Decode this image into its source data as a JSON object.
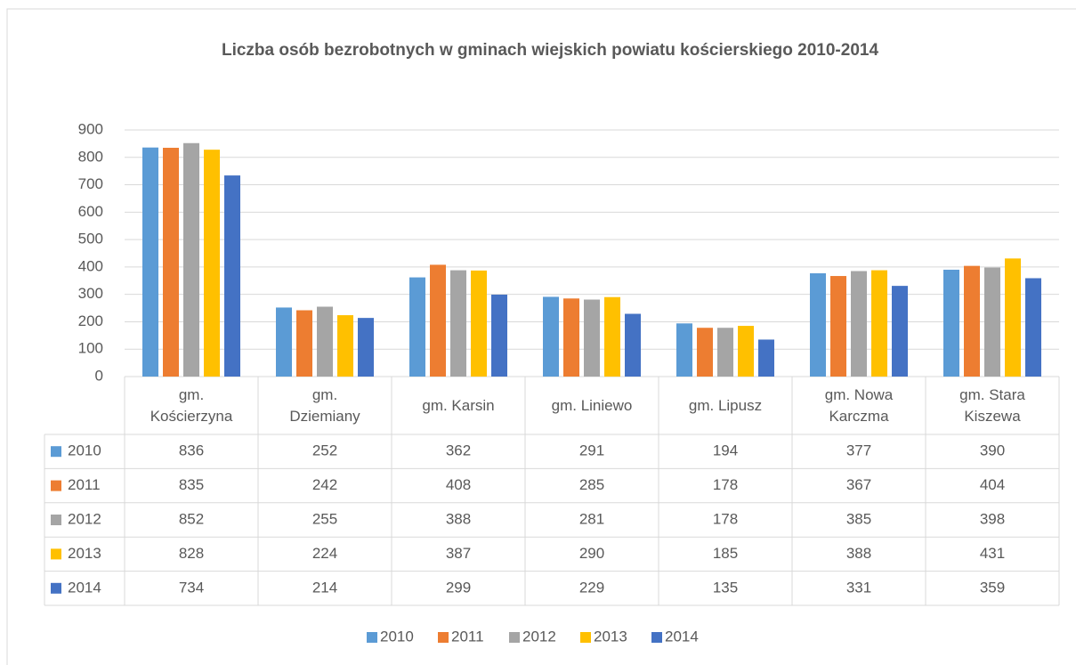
{
  "chart_data": {
    "type": "bar",
    "title": "Liczba osób bezrobotnych w gminach wiejskich  powiatu kościerskiego 2010-2014",
    "categories": [
      "gm. Kościerzyna",
      "gm. Dziemiany",
      "gm. Karsin",
      "gm. Liniewo",
      "gm. Lipusz",
      "gm. Nowa Karczma",
      "gm. Stara Kiszewa"
    ],
    "series": [
      {
        "name": "2010",
        "color": "#5b9bd5",
        "values": [
          836,
          252,
          362,
          291,
          194,
          377,
          390
        ]
      },
      {
        "name": "2011",
        "color": "#ed7d31",
        "values": [
          835,
          242,
          408,
          285,
          178,
          367,
          404
        ]
      },
      {
        "name": "2012",
        "color": "#a5a5a5",
        "values": [
          852,
          255,
          388,
          281,
          178,
          385,
          398
        ]
      },
      {
        "name": "2013",
        "color": "#ffc000",
        "values": [
          828,
          224,
          387,
          290,
          185,
          388,
          431
        ]
      },
      {
        "name": "2014",
        "color": "#4472c4",
        "values": [
          734,
          214,
          299,
          229,
          135,
          331,
          359
        ]
      }
    ],
    "ylim": [
      0,
      900
    ],
    "yticks": [
      0,
      100,
      200,
      300,
      400,
      500,
      600,
      700,
      800,
      900
    ],
    "grid": true,
    "legend": "bottom",
    "data_table": true
  }
}
